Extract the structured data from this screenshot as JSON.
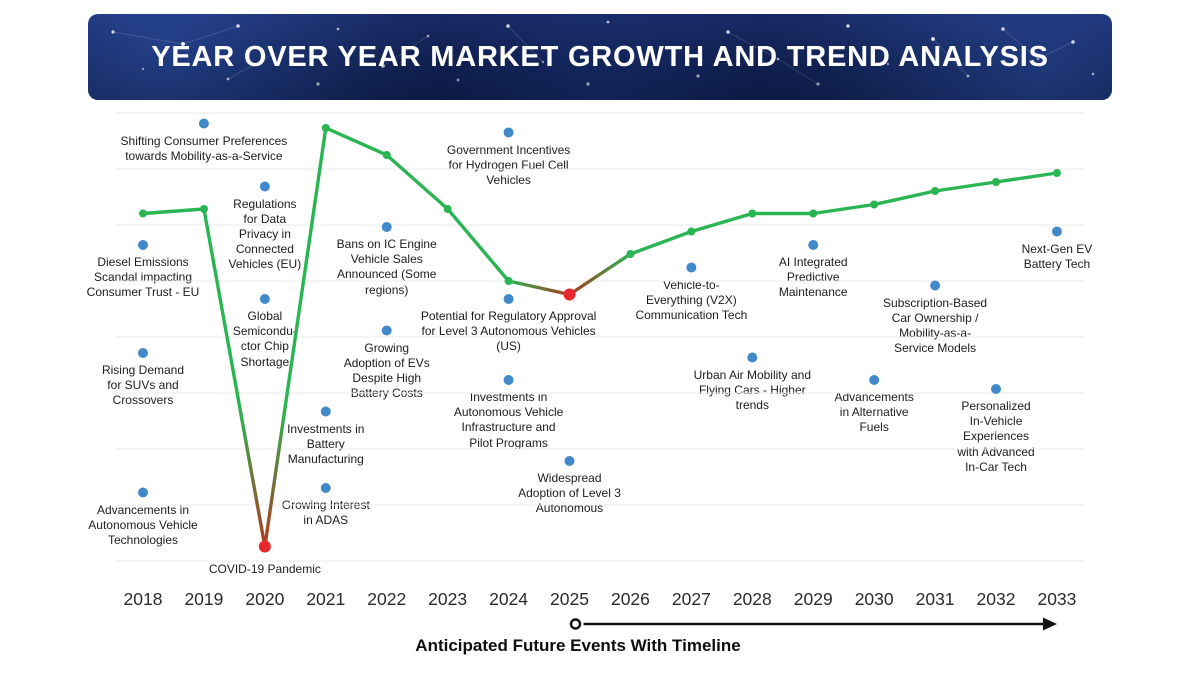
{
  "chart_data": {
    "type": "line",
    "title": "YEAR OVER YEAR MARKET GROWTH AND TREND ANALYSIS",
    "xlabel": "Anticipated Future Events With Timeline",
    "x": [
      2018,
      2019,
      2020,
      2021,
      2022,
      2023,
      2024,
      2025,
      2026,
      2027,
      2028,
      2029,
      2030,
      2031,
      2032,
      2033
    ],
    "ylim": [
      0,
      100
    ],
    "grid": true,
    "trend_values": [
      77,
      78,
      3,
      96,
      90,
      78,
      62,
      59,
      68,
      73,
      77,
      77,
      79,
      82,
      84,
      86
    ],
    "trend_point_colors": [
      "green",
      "green",
      "red",
      "green",
      "green",
      "green",
      "green",
      "red",
      "green",
      "green",
      "green",
      "green",
      "green",
      "green",
      "green",
      "green"
    ],
    "timeline_arrow": {
      "start_year": 2025,
      "end_year": 2033
    },
    "events": [
      {
        "year": 2019,
        "value": 97,
        "dot": "blue",
        "label": "Shifting Consumer Preferences\ntowards Mobility-as-a-Service"
      },
      {
        "year": 2018,
        "value": 70,
        "dot": "blue",
        "label": "Diesel Emissions\nScandal impacting\nConsumer Trust - EU"
      },
      {
        "year": 2018,
        "value": 46,
        "dot": "blue",
        "label": "Rising Demand\nfor SUVs and\nCrossovers"
      },
      {
        "year": 2018,
        "value": 15,
        "dot": "blue",
        "label": "Advancements in\nAutonomous Vehicle\nTechnologies"
      },
      {
        "year": 2020,
        "value": 83,
        "dot": "blue",
        "label": "Regulations\nfor Data\nPrivacy in\nConnected\nVehicles (EU)"
      },
      {
        "year": 2020,
        "value": 58,
        "dot": "blue",
        "label": "Global\nSemicondu-\nctor Chip\nShortage"
      },
      {
        "year": 2020,
        "value": 3,
        "dot": "red",
        "label": "COVID-19 Pandemic"
      },
      {
        "year": 2021,
        "value": 33,
        "dot": "blue",
        "label": "Investments in\nBattery\nManufacturing"
      },
      {
        "year": 2021,
        "value": 16,
        "dot": "blue",
        "label": "Growing Interest\nin ADAS"
      },
      {
        "year": 2022,
        "value": 74,
        "dot": "blue",
        "label": "Bans on IC Engine\nVehicle Sales\nAnnounced (Some\nregions)"
      },
      {
        "year": 2022,
        "value": 51,
        "dot": "blue",
        "label": "Growing\nAdoption of EVs\nDespite High\nBattery Costs"
      },
      {
        "year": 2024,
        "value": 95,
        "dot": "blue",
        "label": "Government Incentives\nfor Hydrogen Fuel Cell\nVehicles"
      },
      {
        "year": 2024,
        "value": 58,
        "dot": "blue",
        "label": "Potential for Regulatory Approval\nfor Level 3 Autonomous Vehicles\n(US)"
      },
      {
        "year": 2024,
        "value": 40,
        "dot": "blue",
        "label": "Investments in\nAutonomous Vehicle\nInfrastructure and\nPilot Programs"
      },
      {
        "year": 2025,
        "value": 22,
        "dot": "blue",
        "label": "Widespread\nAdoption of Level 3\nAutonomous"
      },
      {
        "year": 2027,
        "value": 65,
        "dot": "blue",
        "label": "Vehicle-to-\nEverything (V2X)\nCommunication Tech"
      },
      {
        "year": 2028,
        "value": 45,
        "dot": "blue",
        "label": "Urban Air Mobility and\nFlying Cars - Higher\ntrends"
      },
      {
        "year": 2029,
        "value": 70,
        "dot": "blue",
        "label": "AI Integrated\nPredictive\nMaintenance"
      },
      {
        "year": 2030,
        "value": 40,
        "dot": "blue",
        "label": "Advancements\nin Alternative\nFuels"
      },
      {
        "year": 2031,
        "value": 61,
        "dot": "blue",
        "label": "Subscription-Based\nCar Ownership /\nMobility-as-a-\nService Models"
      },
      {
        "year": 2032,
        "value": 38,
        "dot": "blue",
        "label": "Personalized\nIn-Vehicle\nExperiences\nwith Advanced\nIn-Car Tech"
      },
      {
        "year": 2033,
        "value": 73,
        "dot": "blue",
        "label": "Next-Gen EV\nBattery Tech"
      }
    ]
  },
  "colors": {
    "trend_green": "#29b551",
    "decline_red": "#b03a22",
    "event_blue": "#4189c9",
    "milestone_red": "#e8282d",
    "grid": "#ebebeb",
    "arrow": "#111111"
  }
}
